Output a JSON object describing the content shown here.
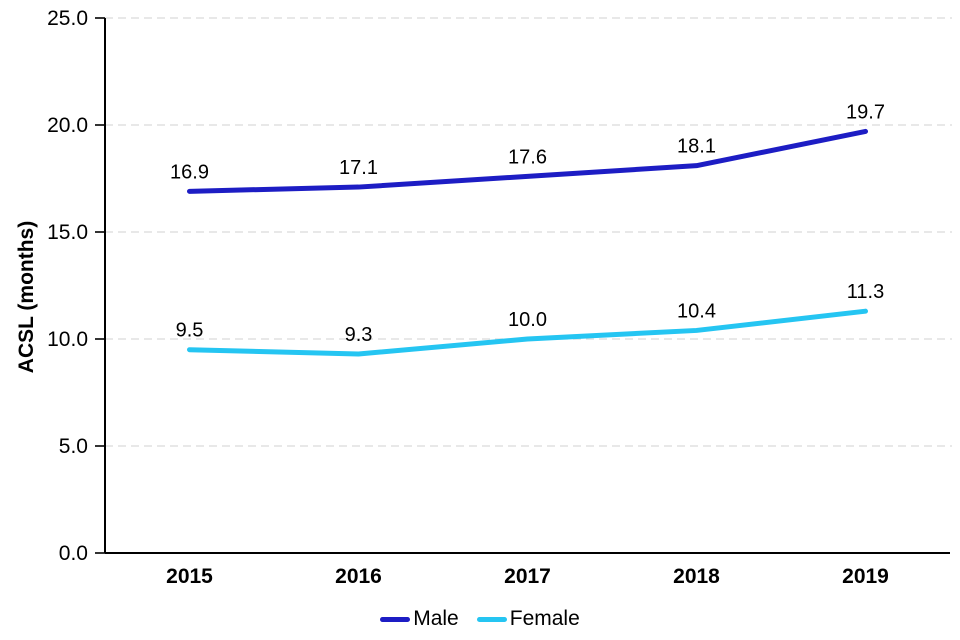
{
  "chart_data": {
    "type": "line",
    "title": "",
    "xlabel": "",
    "ylabel": "ACSL (months)",
    "categories": [
      "2015",
      "2016",
      "2017",
      "2018",
      "2019"
    ],
    "series": [
      {
        "name": "Male",
        "color": "#1D1DC4",
        "values": [
          16.9,
          17.1,
          17.6,
          18.1,
          19.7
        ]
      },
      {
        "name": "Female",
        "color": "#25C5F2",
        "values": [
          9.5,
          9.3,
          10.0,
          10.4,
          11.3
        ]
      }
    ],
    "ylim": [
      0,
      25
    ],
    "ytick_step": 5,
    "ytick_labels": [
      "0.0",
      "5.0",
      "10.0",
      "15.0",
      "20.0",
      "25.0"
    ],
    "grid": "horizontal dashed",
    "data_labels": true,
    "legend_position": "bottom"
  },
  "colors": {
    "gridline": "#D9D9D9",
    "axis": "#000000",
    "text": "#000000",
    "background": "#FFFFFF"
  }
}
